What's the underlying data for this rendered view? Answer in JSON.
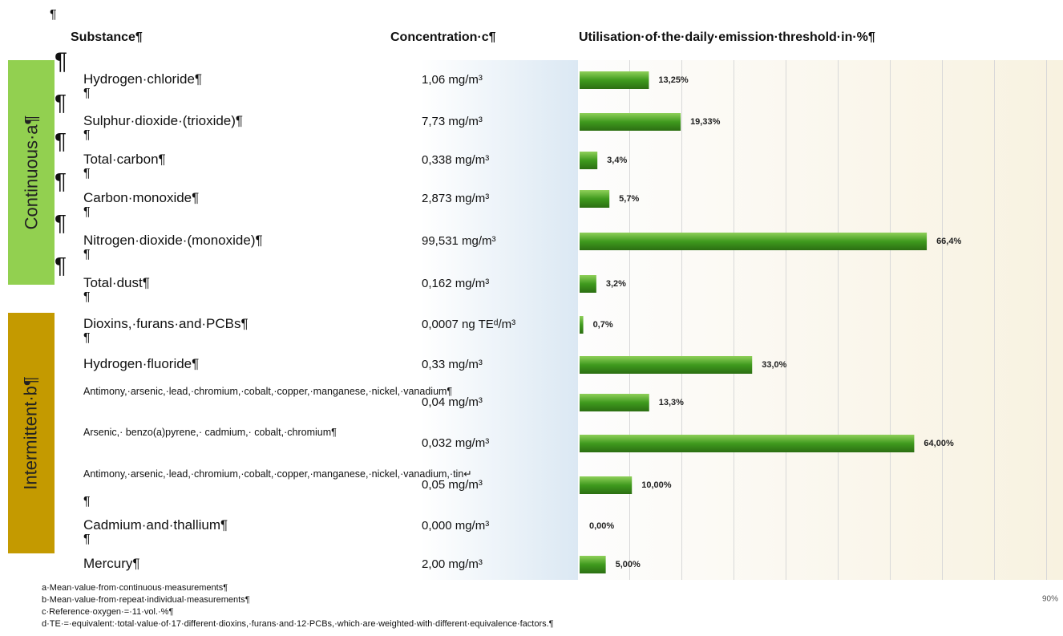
{
  "header": {
    "pilcrow": "¶",
    "substance": "Substance¶",
    "concentration": "Concentration·c¶",
    "utilisation": "Utilisation·of·the·daily·emission·threshold·in·%¶"
  },
  "groups": [
    {
      "label": "Continuous·a¶",
      "color": "#92d050"
    },
    {
      "label": "Intermittent·b¶",
      "color": "#c49a00"
    }
  ],
  "side_pilcrows": [
    "¶",
    "¶",
    "¶",
    "¶",
    "¶",
    "¶"
  ],
  "rows": [
    {
      "substance": "Hydrogen·chloride¶",
      "spacer": "¶",
      "concentration": "1,06 mg/m³",
      "value": 13.25,
      "value_label": "13,25%"
    },
    {
      "substance": "Sulphur·dioxide·(trioxide)¶",
      "spacer": "¶",
      "concentration": "7,73 mg/m³",
      "value": 19.33,
      "value_label": "19,33%"
    },
    {
      "substance": "Total·carbon¶",
      "spacer": "¶",
      "concentration": "0,338 mg/m³",
      "value": 3.4,
      "value_label": "3,4%"
    },
    {
      "substance": "Carbon·monoxide¶",
      "spacer": "¶",
      "concentration": "2,873 mg/m³",
      "value": 5.7,
      "value_label": "5,7%"
    },
    {
      "substance": "Nitrogen·dioxide·(monoxide)¶",
      "spacer": "¶",
      "concentration": "99,531 mg/m³",
      "value": 66.4,
      "value_label": "66,4%"
    },
    {
      "substance": "Total·dust¶",
      "spacer": "¶",
      "concentration": "0,162 mg/m³",
      "value": 3.2,
      "value_label": "3,2%"
    },
    {
      "substance": "Dioxins,·furans·and·PCBs¶",
      "spacer": "¶",
      "concentration": "0,0007 ng TEᵈ/m³",
      "value": 0.7,
      "value_label": "0,7%"
    },
    {
      "substance": "Hydrogen·fluoride¶",
      "concentration": "0,33 mg/m³",
      "value": 33.0,
      "value_label": "33,0%"
    },
    {
      "substance": "Antimony,·arsenic,·lead,·chromium,·cobalt,·copper,·manganese,·nickel,·vanadium¶",
      "concentration": "0,04 mg/m³",
      "value": 13.3,
      "value_label": "13,3%"
    },
    {
      "substance": "Arsenic,· benzo(a)pyrene,· cadmium,· cobalt,·chromium¶",
      "concentration": "0,032 mg/m³",
      "value": 64.0,
      "value_label": "64,00%"
    },
    {
      "substance": "Antimony,·arsenic,·lead,·chromium,·cobalt,·copper,·manganese,·nickel,·vanadium,·tin↵",
      "spacer": "¶",
      "concentration": "0,05 mg/m³",
      "value": 10.0,
      "value_label": "10,00%"
    },
    {
      "substance": "Cadmium·and·thallium¶",
      "spacer": "¶",
      "concentration": "0,000 mg/m³",
      "value": 0.0,
      "value_label": "0,00%"
    },
    {
      "substance": "Mercury¶",
      "concentration": "2,00 mg/m³",
      "value": 5.0,
      "value_label": "5,00%"
    }
  ],
  "xticks": [
    {
      "value": 90,
      "label": "90%"
    }
  ],
  "footnotes": [
    "a·Mean·value·from·continuous·measurements¶",
    "b·Mean·value·from·repeat·individual·measurements¶",
    "c·Reference·oxygen·=·11·vol.·%¶",
    "d·TE·=·equivalent:·total·value·of·17·different·dioxins,·furans·and·12·PCBs,·which·are·weighted·with·different·equivalence·factors.¶"
  ]
}
